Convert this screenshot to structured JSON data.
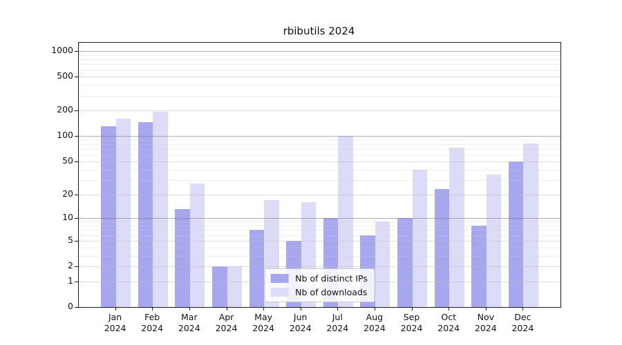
{
  "figure": {
    "title": "rbibutils 2024"
  },
  "chart_data": {
    "type": "bar",
    "title": "rbibutils 2024",
    "categories": [
      "Jan",
      "Feb",
      "Mar",
      "Apr",
      "May",
      "Jun",
      "Jul",
      "Aug",
      "Sep",
      "Oct",
      "Nov",
      "Dec"
    ],
    "category_year_label": "2024",
    "series": [
      {
        "name": "Nb of distinct IPs",
        "color": "#a7a7f0",
        "values": [
          130,
          147,
          13,
          2,
          7,
          5,
          10,
          6,
          10,
          23,
          8,
          50
        ]
      },
      {
        "name": "Nb of downloads",
        "color": "#dcdcf8",
        "values": [
          160,
          192,
          27,
          2,
          17,
          16,
          100,
          9,
          40,
          73,
          35,
          82
        ]
      }
    ],
    "ylabel": "",
    "xlabel": "",
    "yscale": "log10(value+1)",
    "yticks": [
      1000,
      500,
      200,
      100,
      50,
      20,
      10,
      5,
      2,
      1,
      0
    ],
    "decade_gridlines": [
      1000,
      100,
      10
    ],
    "minor_gridlines": [
      3,
      4,
      6,
      7,
      8,
      9,
      30,
      40,
      60,
      70,
      80,
      90,
      300,
      400,
      600,
      700,
      800,
      900
    ],
    "ylim": [
      0,
      1250
    ],
    "grid": "on",
    "legend_position": "lower center"
  }
}
